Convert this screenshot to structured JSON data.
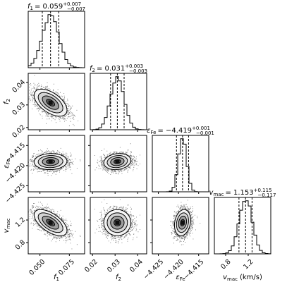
{
  "chart_data": {
    "type": "corner",
    "parameters": [
      {
        "key": "f1",
        "symbol": "f",
        "sub": "1",
        "axis_label": "f1",
        "median": 0.059,
        "plus": 0.007,
        "minus": 0.007,
        "title": "f1 = 0.059 +0.007 −0.007",
        "title_main": "= 0.059",
        "title_plus": "+0.007",
        "title_minus": "−0.007",
        "range": [
          0.04,
          0.088
        ],
        "ticks": [
          0.05,
          0.075
        ],
        "tick_labels": [
          "0.050",
          "0.075"
        ],
        "quantiles": [
          0.052,
          0.059,
          0.066
        ]
      },
      {
        "key": "f2",
        "symbol": "f",
        "sub": "2",
        "axis_label": "f2",
        "median": 0.031,
        "plus": 0.003,
        "minus": 0.003,
        "title": "f2 = 0.031 +0.003 −0.003",
        "title_main": "= 0.031",
        "title_plus": "+0.003",
        "title_minus": "−0.003",
        "range": [
          0.019,
          0.044
        ],
        "ticks": [
          0.02,
          0.03,
          0.04
        ],
        "tick_labels": [
          "0.02",
          "0.03",
          "0.04"
        ],
        "quantiles": [
          0.028,
          0.031,
          0.034
        ]
      },
      {
        "key": "eps_fe",
        "symbol": "ε",
        "sub": "Fe",
        "axis_label": "εFe",
        "median": -4.419,
        "plus": 0.001,
        "minus": 0.001,
        "title": "εFe = −4.419 +0.001 −0.001",
        "title_main": "= −4.419",
        "title_plus": "+0.001",
        "title_minus": "−0.001",
        "range": [
          -4.4265,
          -4.4125
        ],
        "ticks": [
          -4.425,
          -4.42,
          -4.415
        ],
        "tick_labels": [
          "−4.425",
          "−4.420",
          "−4.415"
        ],
        "quantiles": [
          -4.4205,
          -4.419,
          -4.4175
        ]
      },
      {
        "key": "vmac",
        "symbol": "v",
        "sub": "mac",
        "axis_label": "vmac (km/s)",
        "unit": "(km/s)",
        "median": 1.153,
        "plus": 0.115,
        "minus": 0.117,
        "title": "vmac = 1.153 +0.115 −0.117",
        "title_main": "= 1.153",
        "title_plus": "+0.115",
        "title_minus": "−0.117",
        "range": [
          0.6,
          1.6
        ],
        "ticks": [
          0.8,
          1.2
        ],
        "tick_labels": [
          "0.8",
          "1.2"
        ],
        "quantiles": [
          1.036,
          1.153,
          1.268
        ]
      }
    ],
    "correlations": [
      {
        "x": "f1",
        "y": "f2",
        "rho": -0.55
      },
      {
        "x": "f1",
        "y": "eps_fe",
        "rho": 0.05
      },
      {
        "x": "f2",
        "y": "eps_fe",
        "rho": 0.15
      },
      {
        "x": "f1",
        "y": "vmac",
        "rho": -0.6
      },
      {
        "x": "f2",
        "y": "vmac",
        "rho": 0.0
      },
      {
        "x": "eps_fe",
        "y": "vmac",
        "rho": 0.2
      }
    ],
    "contour_levels_sigma": [
      0.5,
      1.0,
      1.5,
      2.0
    ],
    "quantile_lines": [
      0.16,
      0.5,
      0.84
    ],
    "hist_color": "#000000",
    "point_color": "#000000",
    "grid": false
  }
}
